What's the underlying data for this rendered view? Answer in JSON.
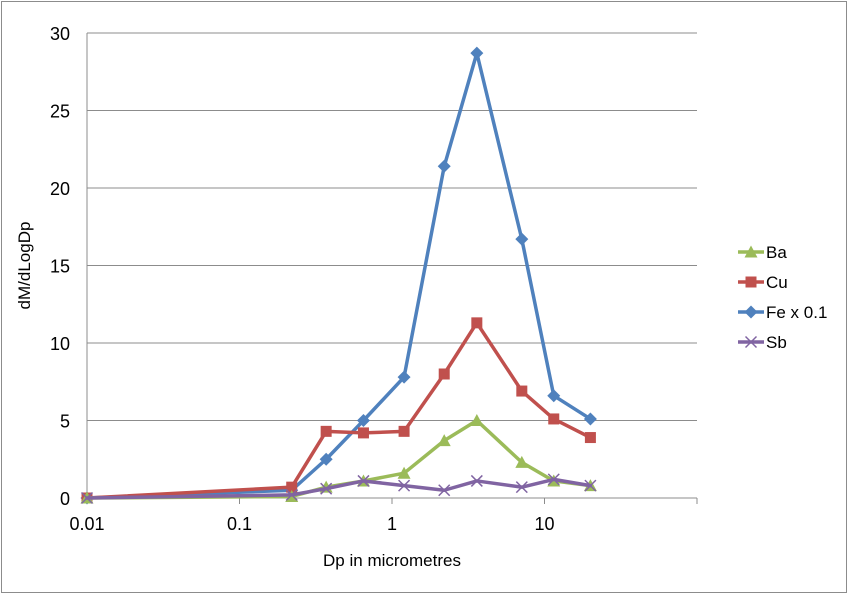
{
  "chart_data": {
    "type": "line",
    "title": "",
    "xlabel": "Dp in micrometres",
    "ylabel": "dM/dLogDp",
    "x_scale": "log",
    "xlim": [
      0.01,
      100
    ],
    "ylim": [
      0,
      30
    ],
    "x_ticks": [
      0.01,
      0.1,
      1,
      10
    ],
    "x_tick_labels": [
      "0.01",
      "0.1",
      "1",
      "10"
    ],
    "y_ticks": [
      0,
      5,
      10,
      15,
      20,
      25,
      30
    ],
    "y_tick_labels": [
      "0",
      "5",
      "10",
      "15",
      "20",
      "25",
      "30"
    ],
    "grid": "horizontal major gridlines",
    "legend_position": "right",
    "series": [
      {
        "name": "Ba",
        "color": "#9bbb59",
        "marker": "triangle",
        "x": [
          0.01,
          0.22,
          0.37,
          0.65,
          1.2,
          2.2,
          3.6,
          7.1,
          11.5,
          20
        ],
        "y": [
          0,
          0.1,
          0.7,
          1.1,
          1.6,
          3.7,
          5.0,
          2.3,
          1.1,
          0.8
        ]
      },
      {
        "name": "Cu",
        "color": "#c0504d",
        "marker": "square",
        "x": [
          0.01,
          0.22,
          0.37,
          0.65,
          1.2,
          2.2,
          3.6,
          7.1,
          11.5,
          20
        ],
        "y": [
          0,
          0.7,
          4.3,
          4.2,
          4.3,
          8.0,
          11.3,
          6.9,
          5.1,
          3.9
        ]
      },
      {
        "name": "Fe x 0.1",
        "color": "#4f81bd",
        "marker": "diamond",
        "x": [
          0.01,
          0.22,
          0.37,
          0.65,
          1.2,
          2.2,
          3.6,
          7.1,
          11.5,
          20
        ],
        "y": [
          0,
          0.5,
          2.5,
          5.0,
          7.8,
          21.4,
          28.7,
          16.7,
          6.6,
          5.1
        ]
      },
      {
        "name": "Sb",
        "color": "#8064a2",
        "marker": "x",
        "x": [
          0.01,
          0.22,
          0.37,
          0.65,
          1.2,
          2.2,
          3.6,
          7.1,
          11.5,
          20
        ],
        "y": [
          0,
          0.2,
          0.6,
          1.1,
          0.8,
          0.5,
          1.1,
          0.7,
          1.2,
          0.8
        ]
      }
    ]
  }
}
